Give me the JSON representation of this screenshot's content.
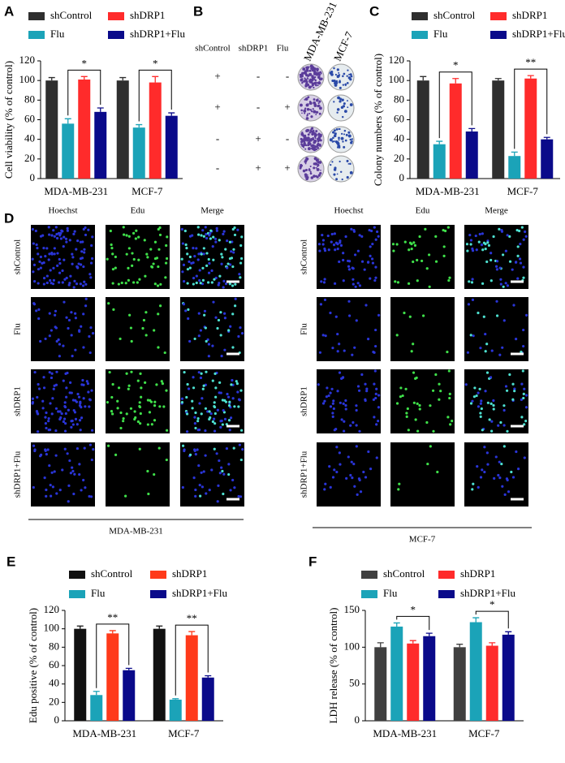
{
  "chart_data": [
    {
      "type": "bar",
      "label": "A",
      "ylabel": "Cell viability (% of control)",
      "categories": [
        "MDA-MB-231",
        "MCF-7"
      ],
      "series": [
        {
          "name": "shControl",
          "color": "#2f2f2f",
          "values": [
            100,
            100
          ],
          "errors": [
            3,
            3
          ]
        },
        {
          "name": "Flu",
          "color": "#1ba3b8",
          "values": [
            56,
            52
          ],
          "errors": [
            5,
            3
          ]
        },
        {
          "name": "shDRP1",
          "color": "#ff2b2b",
          "values": [
            101,
            98
          ],
          "errors": [
            3,
            6
          ]
        },
        {
          "name": "shDRP1+Flu",
          "color": "#0a0a8a",
          "values": [
            68,
            64
          ],
          "errors": [
            4,
            3
          ]
        }
      ],
      "significance": [
        "*",
        "*"
      ],
      "ylim": [
        0,
        120
      ],
      "yticks": [
        0,
        20,
        40,
        60,
        80,
        100,
        120
      ]
    },
    {
      "type": "bar",
      "label": "C",
      "ylabel": "Colony numbers (% of control)",
      "categories": [
        "MDA-MB-231",
        "MCF-7"
      ],
      "series": [
        {
          "name": "shControl",
          "color": "#2f2f2f",
          "values": [
            100,
            100
          ],
          "errors": [
            4,
            2
          ]
        },
        {
          "name": "Flu",
          "color": "#1ba3b8",
          "values": [
            35,
            23
          ],
          "errors": [
            3,
            4
          ]
        },
        {
          "name": "shDRP1",
          "color": "#ff2b2b",
          "values": [
            97,
            102
          ],
          "errors": [
            5,
            3
          ]
        },
        {
          "name": "shDRP1+Flu",
          "color": "#0a0a8a",
          "values": [
            48,
            40
          ],
          "errors": [
            3,
            2
          ]
        }
      ],
      "significance": [
        "*",
        "**"
      ],
      "ylim": [
        0,
        120
      ],
      "yticks": [
        0,
        20,
        40,
        60,
        80,
        100,
        120
      ]
    },
    {
      "type": "bar",
      "label": "E",
      "ylabel": "Edu positive (% of control)",
      "categories": [
        "MDA-MB-231",
        "MCF-7"
      ],
      "series": [
        {
          "name": "shControl",
          "color": "#111111",
          "values": [
            100,
            100
          ],
          "errors": [
            3,
            3
          ]
        },
        {
          "name": "Flu",
          "color": "#1ba3b8",
          "values": [
            28,
            23
          ],
          "errors": [
            4,
            1
          ]
        },
        {
          "name": "shDRP1",
          "color": "#ff3a1a",
          "values": [
            95,
            93
          ],
          "errors": [
            3,
            4
          ]
        },
        {
          "name": "shDRP1+Flu",
          "color": "#0a0a8a",
          "values": [
            55,
            47
          ],
          "errors": [
            2,
            2
          ]
        }
      ],
      "significance": [
        "**",
        "**"
      ],
      "ylim": [
        0,
        120
      ],
      "yticks": [
        0,
        20,
        40,
        60,
        80,
        100,
        120
      ]
    },
    {
      "type": "bar",
      "label": "F",
      "ylabel": "LDH release (% of control)",
      "categories": [
        "MDA-MB-231",
        "MCF-7"
      ],
      "series": [
        {
          "name": "shControl",
          "color": "#404040",
          "values": [
            100,
            100
          ],
          "errors": [
            6,
            4
          ]
        },
        {
          "name": "Flu",
          "color": "#1ba3b8",
          "values": [
            128,
            134
          ],
          "errors": [
            5,
            6
          ]
        },
        {
          "name": "shDRP1",
          "color": "#ff2b2b",
          "values": [
            105,
            102
          ],
          "errors": [
            4,
            4
          ]
        },
        {
          "name": "shDRP1+Flu",
          "color": "#0a0a8a",
          "values": [
            115,
            117
          ],
          "errors": [
            4,
            4
          ]
        }
      ],
      "significance": [
        "*",
        "*"
      ],
      "ylim": [
        0,
        150
      ],
      "yticks": [
        0,
        50,
        100,
        150
      ]
    }
  ],
  "panel_b": {
    "label": "B",
    "columns": [
      "shControl",
      "shDRP1",
      "Flu"
    ],
    "cell_lines": [
      "MDA-MB-231",
      "MCF-7"
    ],
    "rows": [
      [
        "+",
        "-",
        "-"
      ],
      [
        "+",
        "-",
        "+"
      ],
      [
        "-",
        "+",
        "-"
      ],
      [
        "-",
        "+",
        "+"
      ]
    ]
  },
  "panel_d": {
    "label": "D",
    "groups": [
      {
        "cell_line": "MDA-MB-231",
        "columns": [
          "Hoechst",
          "Edu",
          "Merge"
        ],
        "rows": [
          "shControl",
          "Flu",
          "shDRP1",
          "shDRP1+Flu"
        ]
      },
      {
        "cell_line": "MCF-7",
        "columns": [
          "Hoechst",
          "Edu",
          "Merge"
        ],
        "rows": [
          "shControl",
          "Flu",
          "shDRP1",
          "shDRP1+Flu"
        ]
      }
    ]
  }
}
